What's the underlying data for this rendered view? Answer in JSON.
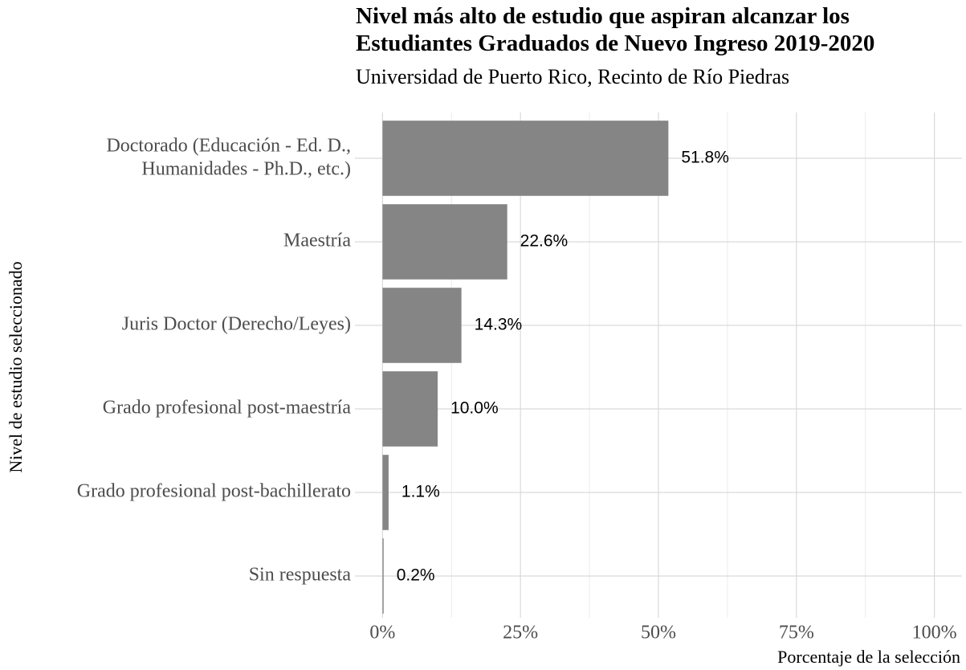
{
  "chart_data": {
    "type": "barh",
    "title": "Nivel más alto de estudio que aspiran alcanzar los\nEstudiantes Graduados de Nuevo Ingreso 2019-2020",
    "subtitle": "Universidad de Puerto Rico, Recinto de Río Piedras",
    "x_label": "Porcentaje de la selección",
    "y_label": "Nivel de estudio seleccionado",
    "categories": [
      "Doctorado (Educación - Ed. D.,\nHumanidades - Ph.D., etc.)",
      "Maestría",
      "Juris Doctor (Derecho/Leyes)",
      "Grado profesional post-maestría",
      "Grado profesional post-bachillerato",
      "Sin respuesta"
    ],
    "values": [
      51.8,
      22.6,
      14.3,
      10.0,
      1.1,
      0.2
    ],
    "value_labels": [
      "51.8%",
      "22.6%",
      "14.3%",
      "10.0%",
      "1.1%",
      "0.2%"
    ],
    "color": "#858585",
    "xlim": [
      -5,
      105
    ],
    "xticks": [
      {
        "value": 0,
        "label": "0%"
      },
      {
        "value": 25,
        "label": "25%"
      },
      {
        "value": 50,
        "label": "50%"
      },
      {
        "value": 75,
        "label": "75%"
      },
      {
        "value": 100,
        "label": "100%"
      }
    ],
    "xminorticks": [
      12.5,
      37.5,
      62.5,
      87.5
    ],
    "grid": true
  }
}
